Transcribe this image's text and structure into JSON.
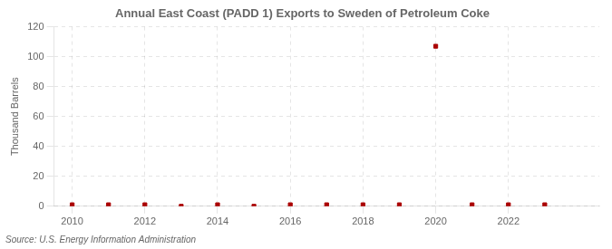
{
  "chart_data": {
    "type": "scatter",
    "title": "Annual East Coast (PADD 1) Exports to Sweden of Petroleum Coke",
    "ylabel": "Thousand Barrels",
    "source": "Source: U.S. Energy Information Administration",
    "x": [
      2010,
      2011,
      2012,
      2013,
      2014,
      2015,
      2016,
      2017,
      2018,
      2019,
      2020,
      2021,
      2022,
      2023
    ],
    "values": [
      1,
      1,
      1,
      0,
      1,
      0,
      1,
      1,
      1,
      1,
      107,
      1,
      1,
      1
    ],
    "color": "#aa0000",
    "marker": "square",
    "xlim": [
      2009.5,
      2024.5
    ],
    "xticks": [
      2010,
      2012,
      2014,
      2016,
      2018,
      2020,
      2022
    ],
    "ylim": [
      0,
      120
    ],
    "yticks": [
      0,
      20,
      40,
      60,
      80,
      100,
      120
    ],
    "grid": true
  }
}
